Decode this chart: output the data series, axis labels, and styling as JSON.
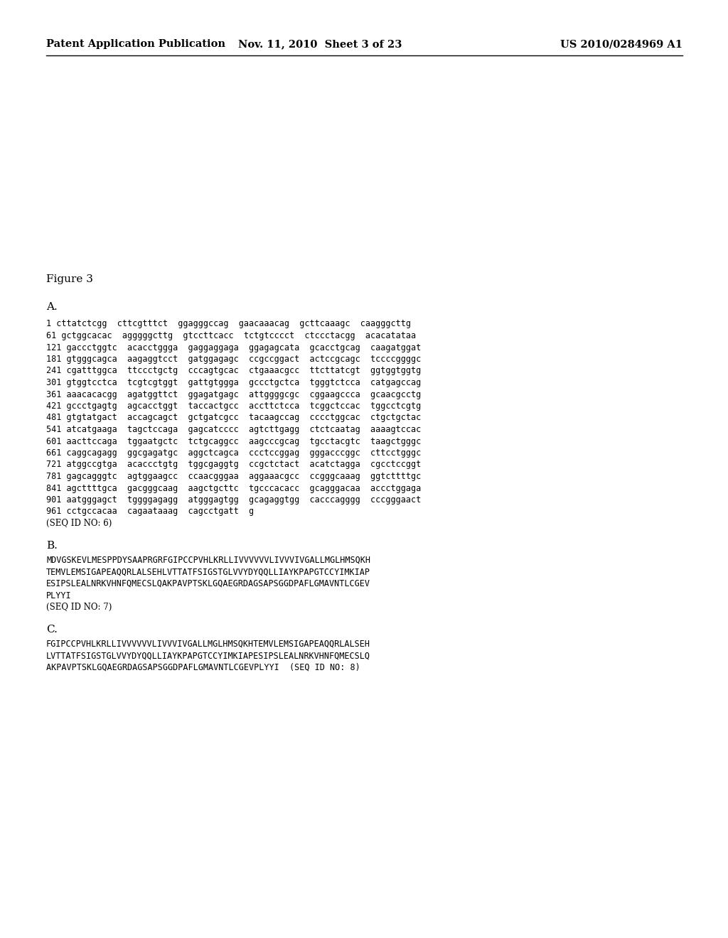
{
  "background_color": "#ffffff",
  "header_left": "Patent Application Publication",
  "header_center": "Nov. 11, 2010  Sheet 3 of 23",
  "header_right": "US 2010/0284969 A1",
  "figure_label": "Figure 3",
  "section_A_label": "A.",
  "section_A_lines": [
    "1 cttatctcgg  cttcgtttct  ggagggccag  gaacaaacag  gcttcaaagc  caagggcttg",
    "61 gctggcacac  agggggcttg  gtccttcacc  tctgtcccct  ctccctacgg  acacatataa",
    "121 gaccctggtc  acacctggga  gaggaggaga  ggagagcata  gcacctgcag  caagatggat",
    "181 gtgggcagca  aagaggtcct  gatggagagc  ccgccggact  actccgcagc  tccccggggc",
    "241 cgatttggca  ttccctgctg  cccagtgcac  ctgaaacgcc  ttcttatcgt  ggtggtggtg",
    "301 gtggtcctca  tcgtcgtggt  gattgtggga  gccctgctca  tgggtctcca  catgagccag",
    "361 aaacacacgg  agatggttct  ggagatgagc  attggggcgc  cggaagccca  gcaacgcctg",
    "421 gccctgagtg  agcacctggt  taccactgcc  accttctcca  tcggctccac  tggcctcgtg",
    "481 gtgtatgact  accagcagct  gctgatcgcc  tacaagccag  cccctggcac  ctgctgctac",
    "541 atcatgaaga  tagctccaga  gagcatcccc  agtcttgagg  ctctcaatag  aaaagtccac",
    "601 aacttccaga  tggaatgctc  tctgcaggcc  aagcccgcag  tgcctacgtc  taagctgggc",
    "661 caggcagagg  ggcgagatgc  aggctcagca  ccctccggag  gggacccggc  cttcctgggc",
    "721 atggccgtga  acaccctgtg  tggcgaggtg  ccgctctact  acatctagga  cgcctccggt",
    "781 gagcagggtc  agtggaagcc  ccaacgggaa  aggaaacgcc  ccgggcaaag  ggtcttttgc",
    "841 agcttttgca  gacgggcaag  aagctgcttc  tgcccacacc  gcagggacaa  accctggaga",
    "901 aatgggagct  tggggagagg  atgggagtgg  gcagaggtgg  cacccagggg  cccgggaact",
    "961 cctgccacaa  cagaataaag  cagcctgatt  g"
  ],
  "section_A_seq": "(SEQ ID NO: 6)",
  "section_B_label": "B.",
  "section_B_lines": [
    "MDVGSKEVLMESPPDYSAAPRGRFGIPCCPVHLKRLLIVVVVVVLIVVVIVGALLMGLHMSQKH",
    "TEMVLEMSIGAPEAQQRLALSEHLVTTATFSIGSTGLVVYDYQQLLIAYKPAPGTCCYIMKIAP",
    "ESIPSLEALNRKVHNFQMECSLQAKPAVPTSKLGQAEGRDAGSAPSGGDPAFLGMAVNTLCGEV",
    "PLYYI"
  ],
  "section_B_seq": "(SEQ ID NO: 7)",
  "section_C_label": "C.",
  "section_C_lines": [
    "FGIPCCPVHLKRLLIVVVVVVLIVVVIVGALLMGLHMSQKHTEMVLEMSIGAPEAQQRLALSEH",
    "LVTTATFSIGSTGLVVYDYQQLLIAYKPAPGTCCYIMKIAPESIPSLEALNRKVHNFQMECSLQ",
    "AKPAVPTSKLGQAEGRDAGSAPSGGDPAFLGMAVNTLCGEVPLYYI  (SEQ ID NO: 8)"
  ],
  "mono_fontsize": 8.5,
  "label_fontsize": 11.0,
  "header_fontsize": 10.5
}
